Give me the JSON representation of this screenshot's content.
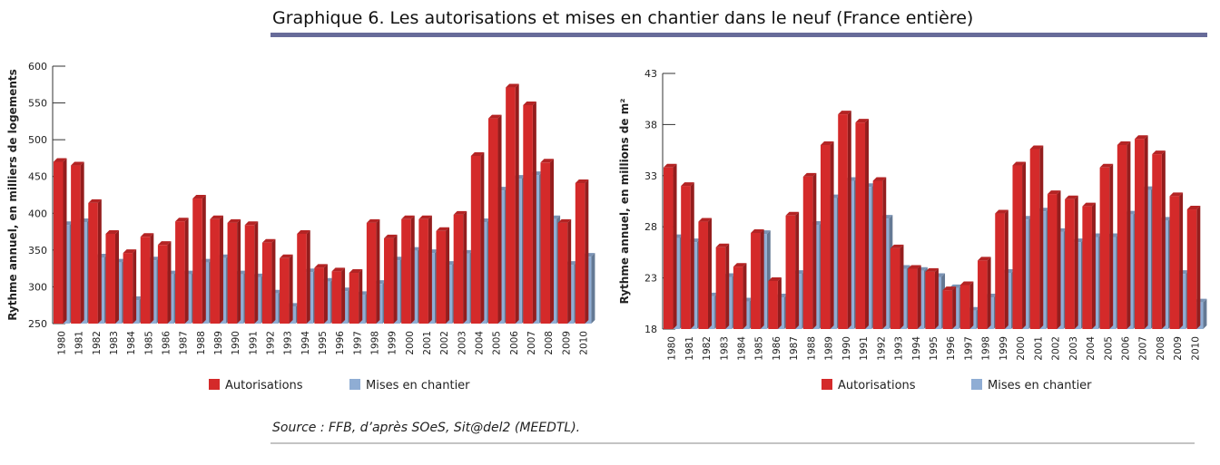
{
  "title": "Graphique 6. Les autorisations et mises en chantier dans le neuf (France entière)",
  "source": "Source : FFB, d’après SOeS, Sit@del2 (MEEDTL).",
  "chart_data": [
    {
      "type": "bar3d",
      "ylabel": "Rythme annuel, en milliers de logements",
      "categories": [
        "1980",
        "1981",
        "1982",
        "1983",
        "1984",
        "1985",
        "1986",
        "1987",
        "1988",
        "1989",
        "1990",
        "1991",
        "1992",
        "1993",
        "1994",
        "1995",
        "1996",
        "1997",
        "1998",
        "1999",
        "2000",
        "2001",
        "2002",
        "2003",
        "2004",
        "2005",
        "2006",
        "2007",
        "2008",
        "2009",
        "2010"
      ],
      "series": [
        {
          "name": "Autorisations",
          "color": "#d42a2a",
          "values": [
            470,
            465,
            414,
            372,
            346,
            368,
            357,
            389,
            420,
            392,
            387,
            384,
            360,
            339,
            372,
            326,
            321,
            319,
            387,
            366,
            392,
            392,
            376,
            398,
            478,
            529,
            571,
            547,
            469,
            387,
            441
          ]
        },
        {
          "name": "Mises en chantier",
          "color": "#8fadd4",
          "values": [
            384,
            388,
            340,
            333,
            282,
            336,
            317,
            317,
            333,
            339,
            317,
            313,
            291,
            273,
            320,
            307,
            294,
            289,
            304,
            336,
            349,
            346,
            330,
            345,
            388,
            431,
            447,
            452,
            392,
            330,
            341
          ]
        }
      ],
      "ylim": [
        250,
        600
      ],
      "yticks": [
        250,
        300,
        350,
        400,
        450,
        500,
        550,
        600
      ]
    },
    {
      "type": "bar3d",
      "ylabel": "Rythme annuel, en millions de m²",
      "categories": [
        "1980",
        "1981",
        "1982",
        "1983",
        "1984",
        "1985",
        "1986",
        "1987",
        "1988",
        "1989",
        "1990",
        "1991",
        "1992",
        "1993",
        "1994",
        "1995",
        "1996",
        "1997",
        "1998",
        "1999",
        "2000",
        "2001",
        "2002",
        "2003",
        "2004",
        "2005",
        "2006",
        "2007",
        "2008",
        "2009",
        "2010"
      ],
      "series": [
        {
          "name": "Autorisations",
          "color": "#d42a2a",
          "values": [
            33.8,
            32.0,
            28.5,
            26.0,
            24.1,
            27.4,
            22.7,
            29.1,
            32.9,
            36.0,
            39.0,
            38.2,
            32.5,
            25.9,
            23.9,
            23.6,
            21.8,
            22.3,
            24.7,
            29.3,
            34.0,
            35.6,
            31.2,
            30.7,
            30.0,
            33.8,
            36.0,
            36.6,
            35.1,
            31.0,
            29.7
          ]
        },
        {
          "name": "Mises en chantier",
          "color": "#8fadd4",
          "values": [
            26.9,
            26.5,
            21.2,
            23.1,
            20.7,
            27.3,
            21.1,
            23.4,
            28.2,
            30.8,
            32.5,
            31.9,
            28.8,
            23.9,
            23.7,
            23.1,
            22.0,
            19.8,
            21.1,
            23.5,
            28.7,
            29.5,
            27.5,
            26.5,
            27.0,
            27.0,
            29.2,
            31.6,
            28.6,
            23.4,
            20.6
          ]
        }
      ],
      "ylim": [
        18,
        43
      ],
      "yticks": [
        18,
        23,
        28,
        33,
        38,
        43
      ]
    }
  ]
}
